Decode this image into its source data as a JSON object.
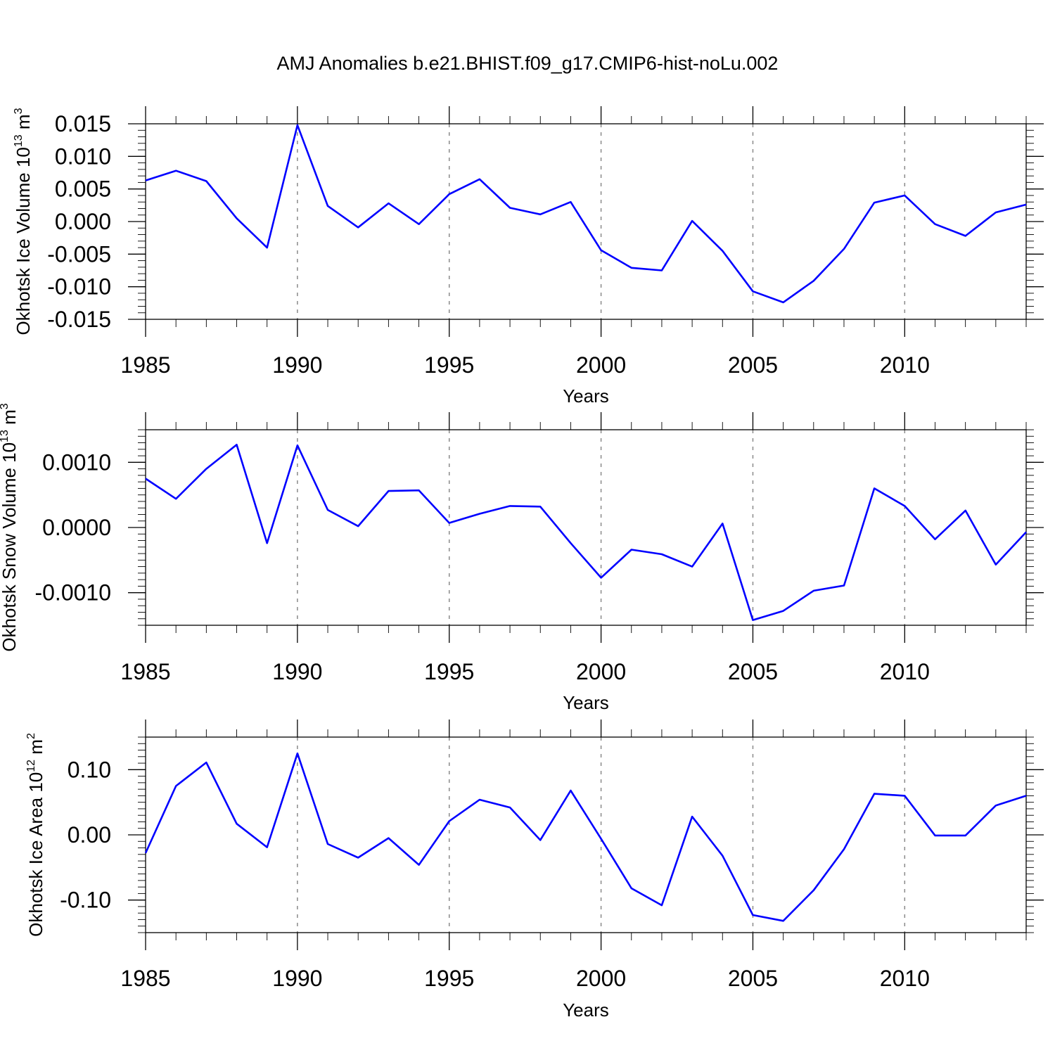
{
  "title": "AMJ Anomalies b.e21.BHIST.f09_g17.CMIP6-hist-noLu.002",
  "chart_data": [
    {
      "type": "line",
      "xlabel": "Years",
      "ylabel": "Okhotsk Ice Volume 10",
      "ylabel_exp": "13",
      "ylabel_unit": " m",
      "ylabel_unit_exp": "3",
      "xlim": [
        1985,
        2014
      ],
      "ylim": [
        -0.015,
        0.015
      ],
      "xticks": [
        "1985",
        "1990",
        "1995",
        "2000",
        "2005",
        "2010"
      ],
      "yticks": [
        "0.015",
        "0.010",
        "0.005",
        "0.000",
        "-0.005",
        "-0.010",
        "-0.015"
      ],
      "x": [
        1985,
        1986,
        1987,
        1988,
        1989,
        1990,
        1991,
        1992,
        1993,
        1994,
        1995,
        1996,
        1997,
        1998,
        1999,
        2000,
        2001,
        2002,
        2003,
        2004,
        2005,
        2006,
        2007,
        2008,
        2009,
        2010,
        2011,
        2012,
        2013,
        2014
      ],
      "y": [
        0.0063,
        0.0078,
        0.0062,
        0.0005,
        -0.004,
        0.0148,
        0.0024,
        -0.0009,
        0.0028,
        -0.0004,
        0.0042,
        0.0065,
        0.0021,
        0.0011,
        0.003,
        -0.0044,
        -0.0071,
        -0.0075,
        0.0001,
        -0.0045,
        -0.0107,
        -0.0124,
        -0.0091,
        -0.0042,
        0.0029,
        0.004,
        -0.0004,
        -0.0022,
        0.0014,
        0.0026
      ]
    },
    {
      "type": "line",
      "xlabel": "Years",
      "ylabel": "Okhotsk Snow Volume 10",
      "ylabel_exp": "13",
      "ylabel_unit": " m",
      "ylabel_unit_exp": "3",
      "xlim": [
        1985,
        2014
      ],
      "ylim": [
        -0.0015,
        0.0015
      ],
      "xticks": [
        "1985",
        "1990",
        "1995",
        "2000",
        "2005",
        "2010"
      ],
      "yticks": [
        "0.0010",
        "0.0000",
        "-0.0010"
      ],
      "x": [
        1985,
        1986,
        1987,
        1988,
        1989,
        1990,
        1991,
        1992,
        1993,
        1994,
        1995,
        1996,
        1997,
        1998,
        1999,
        2000,
        2001,
        2002,
        2003,
        2004,
        2005,
        2006,
        2007,
        2008,
        2009,
        2010,
        2011,
        2012,
        2013,
        2014
      ],
      "y": [
        0.00075,
        0.00044,
        0.0009,
        0.00127,
        -0.00024,
        0.00126,
        0.00027,
        2e-05,
        0.00056,
        0.00057,
        7e-05,
        0.00021,
        0.00033,
        0.00032,
        -0.00024,
        -0.00077,
        -0.00034,
        -0.00041,
        -0.0006,
        6e-05,
        -0.00142,
        -0.00128,
        -0.00097,
        -0.00089,
        0.0006,
        0.00033,
        -0.00018,
        0.00026,
        -0.00057,
        -7e-05
      ]
    },
    {
      "type": "line",
      "xlabel": "Years",
      "ylabel": "Okhotsk Ice Area 10",
      "ylabel_exp": "12",
      "ylabel_unit": " m",
      "ylabel_unit_exp": "2",
      "xlim": [
        1985,
        2014
      ],
      "ylim": [
        -0.15,
        0.15
      ],
      "xticks": [
        "1985",
        "1990",
        "1995",
        "2000",
        "2005",
        "2010"
      ],
      "yticks": [
        "0.10",
        "0.00",
        "-0.10"
      ],
      "x": [
        1985,
        1986,
        1987,
        1988,
        1989,
        1990,
        1991,
        1992,
        1993,
        1994,
        1995,
        1996,
        1997,
        1998,
        1999,
        2000,
        2001,
        2002,
        2003,
        2004,
        2005,
        2006,
        2007,
        2008,
        2009,
        2010,
        2011,
        2012,
        2013,
        2014
      ],
      "y": [
        -0.028,
        0.075,
        0.111,
        0.017,
        -0.019,
        0.125,
        -0.014,
        -0.035,
        -0.005,
        -0.046,
        0.021,
        0.054,
        0.042,
        -0.008,
        0.068,
        -0.006,
        -0.082,
        -0.108,
        0.028,
        -0.032,
        -0.123,
        -0.132,
        -0.085,
        -0.022,
        0.063,
        0.06,
        -0.001,
        -0.001,
        0.045,
        0.06
      ]
    }
  ]
}
